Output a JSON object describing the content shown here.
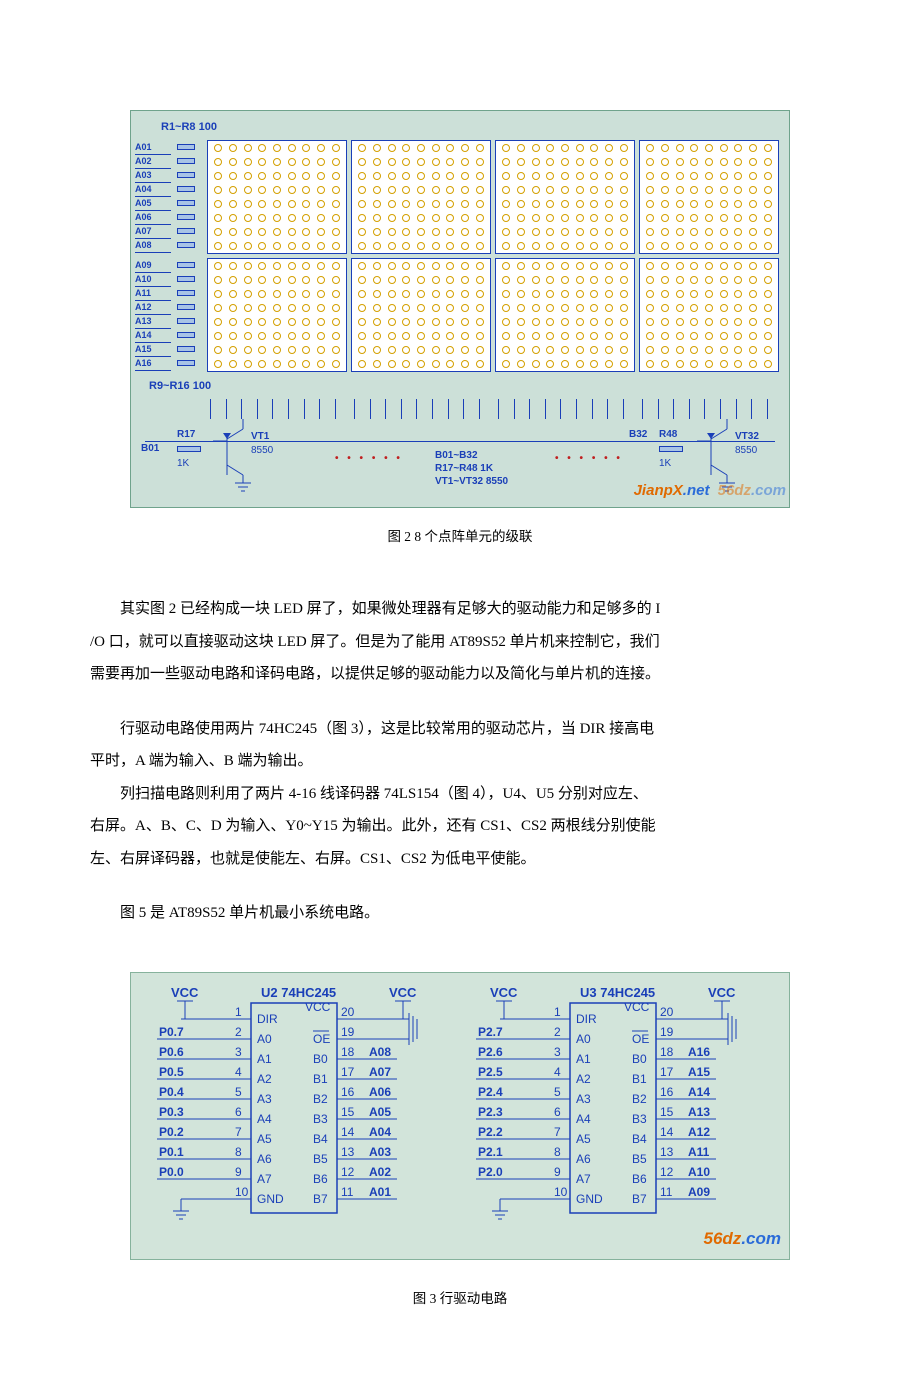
{
  "fig2": {
    "resistor_top_label": "R1~R8 100",
    "resistor_mid_label": "R9~R16 100",
    "rows_top": [
      "A01",
      "A02",
      "A03",
      "A04",
      "A05",
      "A06",
      "A07",
      "A08"
    ],
    "rows_bottom": [
      "A09",
      "A10",
      "A11",
      "A12",
      "A13",
      "A14",
      "A15",
      "A16"
    ],
    "panel_count": 4,
    "cols_per_panel": 9,
    "rows_per_section": 8,
    "led_border_color": "#d4a000",
    "panel_bg": "#ffffff",
    "left": {
      "b_label": "B01",
      "r_label": "R17",
      "r_value": "1K",
      "vt_label": "VT1",
      "vt_part": "8550"
    },
    "right": {
      "b_label": "B32",
      "r_label": "R48",
      "r_value": "1K",
      "vt_label": "VT32",
      "vt_part": "8550"
    },
    "center_lines": [
      "B01~B32",
      "R17~R48  1K",
      "VT1~VT32  8550"
    ],
    "watermark_a": "JianpX",
    "watermark_b": ".net",
    "watermark_c": "56dz",
    "watermark_d": ".com",
    "caption": "图 2 8 个点阵单元的级联"
  },
  "para1_a": "其实图 2 已经构成一块 LED 屏了，如果微处理器有足够大的驱动能力和足够多的 I",
  "para1_b": "/O 口，就可以直接驱动这块 LED 屏了。但是为了能用 AT89S52 单片机来控制它，我们",
  "para1_c": "需要再加一些驱动电路和译码电路，以提供足够的驱动能力以及简化与单片机的连接。",
  "para2_a": "行驱动电路使用两片 74HC245（图 3），这是比较常用的驱动芯片，当 DIR 接高电",
  "para2_b": "平时，A 端为输入、B 端为输出。",
  "para3_a": "列扫描电路则利用了两片 4-16 线译码器 74LS154（图 4），U4、U5 分别对应左、",
  "para3_b": "右屏。A、B、C、D 为输入、Y0~Y15 为输出。此外，还有 CS1、CS2 两根线分别使能",
  "para3_c": "左、右屏译码器，也就是使能左、右屏。CS1、CS2 为低电平使能。",
  "para4": "图 5 是 AT89S52 单片机最小系统电路。",
  "fig3": {
    "vcc": "VCC",
    "u2": {
      "title": "U2  74HC245",
      "left_net_top": "",
      "left_nets": [
        "P0.7",
        "P0.6",
        "P0.5",
        "P0.4",
        "P0.3",
        "P0.2",
        "P0.1",
        "P0.0"
      ],
      "left_pins": [
        "1",
        "2",
        "3",
        "4",
        "5",
        "6",
        "7",
        "8",
        "9",
        "10"
      ],
      "internal_left": [
        "DIR",
        "A0",
        "A1",
        "A2",
        "A3",
        "A4",
        "A5",
        "A6",
        "A7",
        "GND"
      ],
      "internal_right_top": "VCC",
      "internal_right": [
        "OE",
        "B0",
        "B1",
        "B2",
        "B3",
        "B4",
        "B5",
        "B6",
        "B7"
      ],
      "right_pins": [
        "20",
        "19",
        "18",
        "17",
        "16",
        "15",
        "14",
        "13",
        "12",
        "11"
      ],
      "right_nets": [
        "",
        "",
        "A08",
        "A07",
        "A06",
        "A05",
        "A04",
        "A03",
        "A02",
        "A01"
      ]
    },
    "u3": {
      "title": "U3  74HC245",
      "left_nets": [
        "P2.7",
        "P2.6",
        "P2.5",
        "P2.4",
        "P2.3",
        "P2.2",
        "P2.1",
        "P2.0"
      ],
      "left_pins": [
        "1",
        "2",
        "3",
        "4",
        "5",
        "6",
        "7",
        "8",
        "9",
        "10"
      ],
      "internal_left": [
        "DIR",
        "A0",
        "A1",
        "A2",
        "A3",
        "A4",
        "A5",
        "A6",
        "A7",
        "GND"
      ],
      "internal_right_top": "VCC",
      "internal_right": [
        "OE",
        "B0",
        "B1",
        "B2",
        "B3",
        "B4",
        "B5",
        "B6",
        "B7"
      ],
      "right_pins": [
        "20",
        "19",
        "18",
        "17",
        "16",
        "15",
        "14",
        "13",
        "12",
        "11"
      ],
      "right_nets": [
        "",
        "",
        "A16",
        "A15",
        "A14",
        "A13",
        "A12",
        "A11",
        "A10",
        "A09"
      ]
    },
    "watermark_a": "56dz",
    "watermark_b": ".com",
    "caption": "图 3 行驱动电路"
  }
}
